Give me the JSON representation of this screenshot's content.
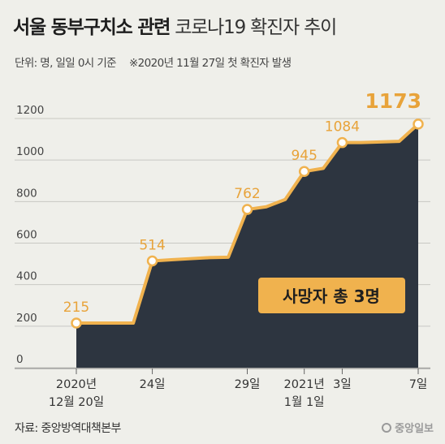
{
  "header": {
    "title_bold": "서울 동부구치소 관련",
    "title_light": "코로나19 확진자 추이",
    "unit": "단위: 명, 일일 0시 기준",
    "note": "※2020년 11월 27일 첫 확진자 발생"
  },
  "footer": {
    "source": "자료: 중앙방역대책본부",
    "logo": "중앙일보"
  },
  "colors": {
    "background": "#efefea",
    "area": "#2d3540",
    "line": "#f0b24e",
    "label": "#e8a33a",
    "grid": "#c8c8c3"
  },
  "chart_data": {
    "type": "area",
    "ylim": [
      0,
      1200
    ],
    "yticks": [
      0,
      200,
      400,
      600,
      800,
      1000,
      1200
    ],
    "grid": true,
    "x": [
      "2020-12-20",
      "2020-12-21",
      "2020-12-22",
      "2020-12-23",
      "2020-12-24",
      "2020-12-25",
      "2020-12-26",
      "2020-12-27",
      "2020-12-28",
      "2020-12-29",
      "2020-12-30",
      "2020-12-31",
      "2021-01-01",
      "2021-01-02",
      "2021-01-03",
      "2021-01-04",
      "2021-01-05",
      "2021-01-06",
      "2021-01-07"
    ],
    "values": [
      215,
      215,
      215,
      215,
      514,
      520,
      525,
      530,
      532,
      762,
      775,
      810,
      945,
      960,
      1084,
      1084,
      1087,
      1090,
      1173
    ],
    "tick_labels": [
      {
        "date": "2020-12-20",
        "lines": [
          "2020년",
          "12월 20일"
        ]
      },
      {
        "date": "2020-12-24",
        "lines": [
          "24일"
        ]
      },
      {
        "date": "2020-12-29",
        "lines": [
          "29일"
        ]
      },
      {
        "date": "2021-01-01",
        "lines": [
          "2021년",
          "1월 1일"
        ]
      },
      {
        "date": "2021-01-03",
        "lines": [
          "3일"
        ]
      },
      {
        "date": "2021-01-07",
        "lines": [
          "7일"
        ]
      }
    ],
    "data_labels": [
      {
        "date": "2020-12-20",
        "text": "215"
      },
      {
        "date": "2020-12-24",
        "text": "514"
      },
      {
        "date": "2020-12-29",
        "text": "762"
      },
      {
        "date": "2021-01-01",
        "text": "945"
      },
      {
        "date": "2021-01-03",
        "text": "1084"
      },
      {
        "date": "2021-01-07",
        "text": "1173"
      }
    ],
    "annotation": "사망자 총 3명"
  }
}
